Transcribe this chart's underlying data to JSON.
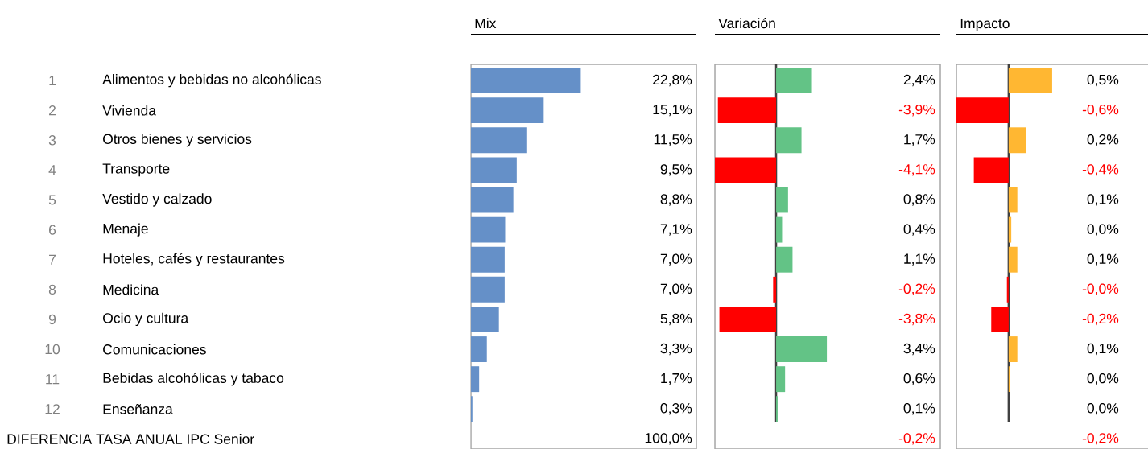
{
  "chart_data": [
    {
      "type": "bar",
      "orientation": "horizontal",
      "title": "Mix",
      "tick_labels": "y",
      "categories": [
        "Alimentos y bebidas no alcohólicas",
        "Vivienda",
        "Otros bienes y servicios",
        "Transporte",
        "Vestido y calzado",
        "Menaje",
        "Hoteles, cafés y restaurantes",
        "Medicina",
        "Ocio y cultura",
        "Comunicaciones",
        "Bebidas alcohólicas y tabaco",
        "Enseñanza"
      ],
      "values": [
        22.8,
        15.1,
        11.5,
        9.5,
        8.8,
        7.1,
        7.0,
        7.0,
        5.8,
        3.3,
        1.7,
        0.3
      ],
      "color": "#6590c8",
      "value_labels": [
        "22,8%",
        "15,1%",
        "11,5%",
        "9,5%",
        "8,8%",
        "7,1%",
        "7,0%",
        "7,0%",
        "5,8%",
        "3,3%",
        "1,7%",
        "0,3%"
      ],
      "xlim": [
        0,
        46.8
      ],
      "annotations": [
        "1",
        "2",
        "3",
        "4",
        "5",
        "6",
        "7",
        "8",
        "9",
        "10",
        "11",
        "12",
        "DIFERENCIA TASA ANUAL IPC Senior",
        "100,0%"
      ]
    },
    {
      "type": "bar",
      "orientation": "horizontal",
      "title": "Variación",
      "tick_labels": false,
      "categories": [
        null,
        null,
        null,
        null,
        null,
        null,
        null,
        null,
        null,
        null,
        null,
        null
      ],
      "values": [
        2.4,
        -3.9,
        1.7,
        -4.1,
        0.8,
        0.4,
        1.1,
        -0.2,
        -3.8,
        3.4,
        0.6,
        0.1
      ],
      "colors": [
        "#63c386",
        "#ff0000",
        "#63c386",
        "#ff0000",
        "#63c386",
        "#63c386",
        "#63c386",
        "#ff0000",
        "#ff0000",
        "#63c386",
        "#63c386",
        "#63c386"
      ],
      "value_labels": [
        "2,4%",
        "-3,9%",
        "1,7%",
        "-4,1%",
        "0,8%",
        "0,4%",
        "1,1%",
        "-0,2%",
        "-3,8%",
        "3,4%",
        "0,6%",
        "0,1%"
      ],
      "xlim": [
        -4.1,
        11.0
      ],
      "annotations": [
        "-0,2%"
      ]
    },
    {
      "type": "bar",
      "orientation": "horizontal",
      "title": "Impacto",
      "tick_labels": false,
      "categories": [
        null,
        null,
        null,
        null,
        null,
        null,
        null,
        null,
        null,
        null,
        null,
        null
      ],
      "values": [
        0.5,
        -0.6,
        0.2,
        -0.4,
        0.1,
        0.03,
        0.1,
        -0.02,
        -0.2,
        0.1,
        0.01,
        0.0
      ],
      "colors": [
        "#ffb732",
        "#ff0000",
        "#ffb732",
        "#ff0000",
        "#ffb732",
        "#ffb732",
        "#ffb732",
        "#ff0000",
        "#ff0000",
        "#ffb732",
        "#ffb732",
        "#ffb732"
      ],
      "value_labels": [
        "0,5%",
        "-0,6%",
        "0,2%",
        "-0,4%",
        "0,1%",
        "0,0%",
        "0,1%",
        "-0,0%",
        "-0,2%",
        "0,1%",
        "0,0%",
        "0,0%"
      ],
      "xlim": [
        -0.6,
        1.62
      ],
      "annotations": [
        "-0,2%"
      ]
    }
  ]
}
